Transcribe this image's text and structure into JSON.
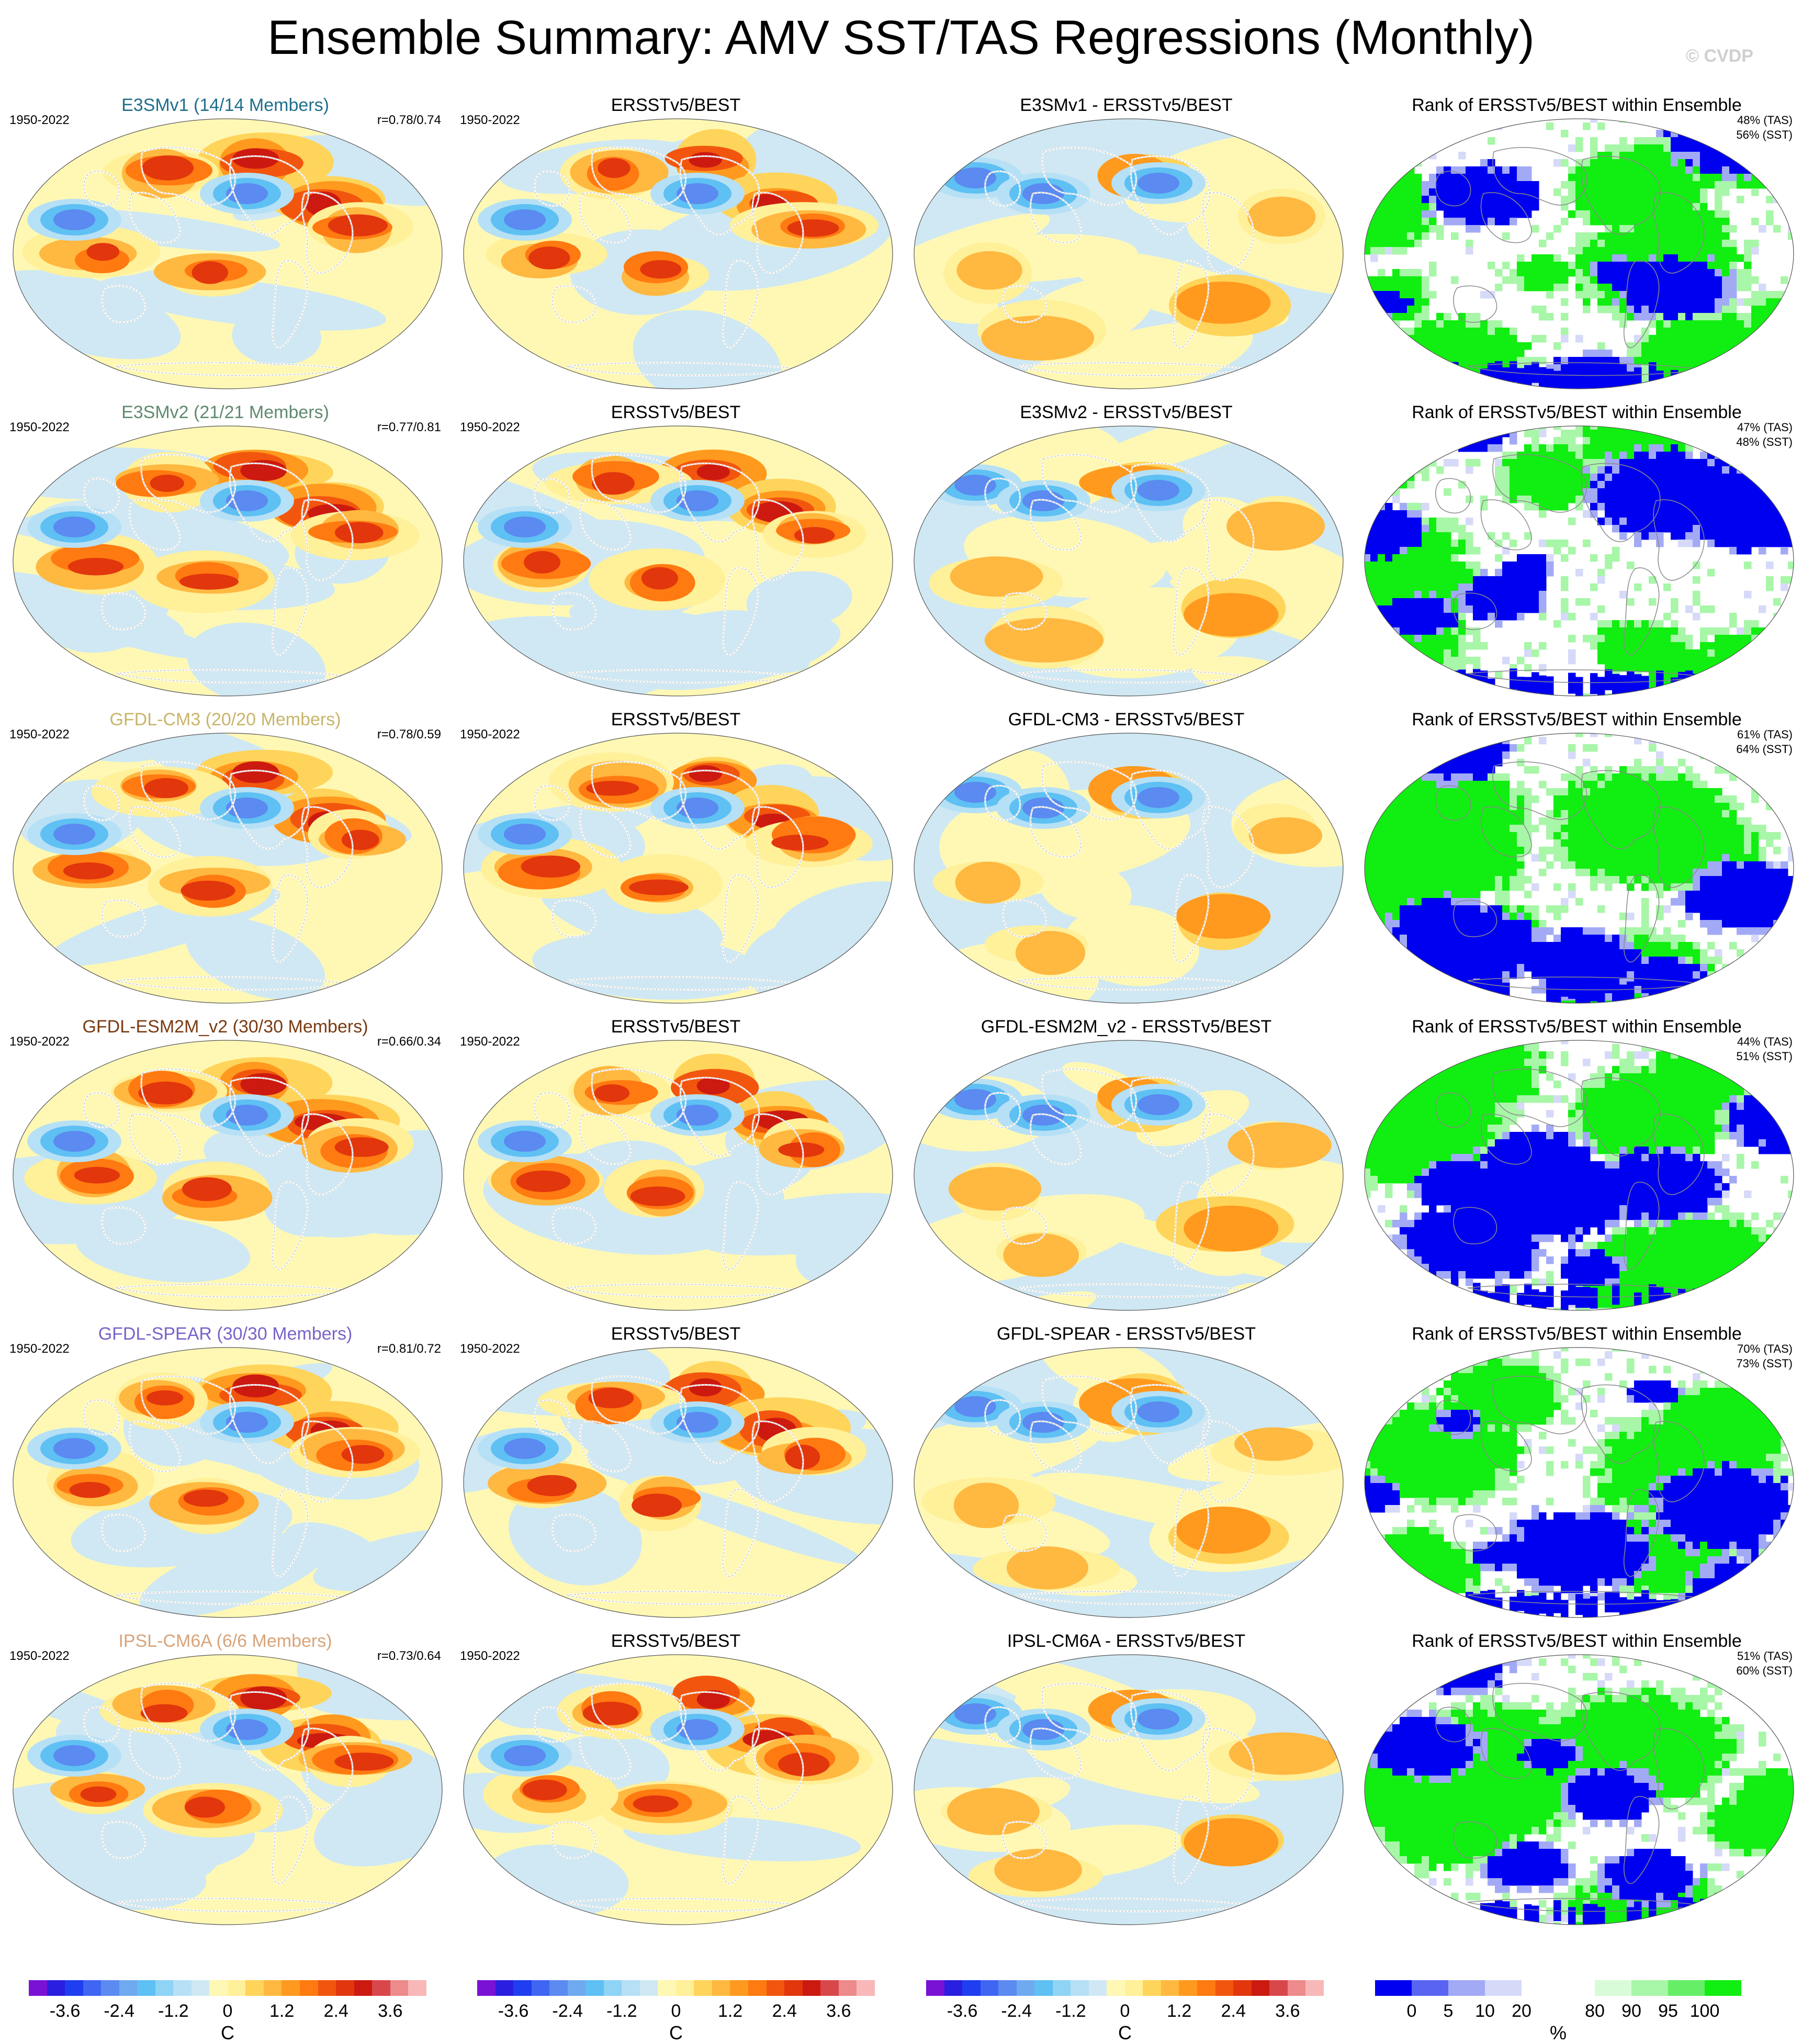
{
  "title": "Ensemble Summary: AMV SST/TAS Regressions (Monthly)",
  "watermark": "© CVDP",
  "colors": {
    "model_title_colors": [
      "#1f6f8b",
      "#5f8a6e",
      "#c8b56a",
      "#7a3b12",
      "#7b62c9",
      "#d8a47a"
    ]
  },
  "rows": [
    {
      "model": {
        "title": "E3SMv1 (14/14 Members)",
        "years": "1950-2022",
        "stat": "r=0.78/0.74"
      },
      "obs": {
        "title": "ERSSTv5/BEST",
        "years": "1950-2022"
      },
      "diff": {
        "title": "E3SMv1 - ERSSTv5/BEST"
      },
      "rank": {
        "title": "Rank of ERSSTv5/BEST within Ensemble",
        "tas": "48% (TAS)",
        "sst": "56% (SST)"
      }
    },
    {
      "model": {
        "title": "E3SMv2 (21/21 Members)",
        "years": "1950-2022",
        "stat": "r=0.77/0.81"
      },
      "obs": {
        "title": "ERSSTv5/BEST",
        "years": "1950-2022"
      },
      "diff": {
        "title": "E3SMv2 - ERSSTv5/BEST"
      },
      "rank": {
        "title": "Rank of ERSSTv5/BEST within Ensemble",
        "tas": "47% (TAS)",
        "sst": "48% (SST)"
      }
    },
    {
      "model": {
        "title": "GFDL-CM3 (20/20 Members)",
        "years": "1950-2022",
        "stat": "r=0.78/0.59"
      },
      "obs": {
        "title": "ERSSTv5/BEST",
        "years": "1950-2022"
      },
      "diff": {
        "title": "GFDL-CM3 - ERSSTv5/BEST"
      },
      "rank": {
        "title": "Rank of ERSSTv5/BEST within Ensemble",
        "tas": "61% (TAS)",
        "sst": "64% (SST)"
      }
    },
    {
      "model": {
        "title": "GFDL-ESM2M_v2 (30/30 Members)",
        "years": "1950-2022",
        "stat": "r=0.66/0.34"
      },
      "obs": {
        "title": "ERSSTv5/BEST",
        "years": "1950-2022"
      },
      "diff": {
        "title": "GFDL-ESM2M_v2 - ERSSTv5/BEST"
      },
      "rank": {
        "title": "Rank of ERSSTv5/BEST within Ensemble",
        "tas": "44% (TAS)",
        "sst": "51% (SST)"
      }
    },
    {
      "model": {
        "title": "GFDL-SPEAR (30/30 Members)",
        "years": "1950-2022",
        "stat": "r=0.81/0.72"
      },
      "obs": {
        "title": "ERSSTv5/BEST",
        "years": "1950-2022"
      },
      "diff": {
        "title": "GFDL-SPEAR - ERSSTv5/BEST"
      },
      "rank": {
        "title": "Rank of ERSSTv5/BEST within Ensemble",
        "tas": "70% (TAS)",
        "sst": "73% (SST)"
      }
    },
    {
      "model": {
        "title": "IPSL-CM6A (6/6 Members)",
        "years": "1950-2022",
        "stat": "r=0.73/0.64"
      },
      "obs": {
        "title": "ERSSTv5/BEST",
        "years": "1950-2022"
      },
      "diff": {
        "title": "IPSL-CM6A - ERSSTv5/BEST"
      },
      "rank": {
        "title": "Rank of ERSSTv5/BEST within Ensemble",
        "tas": "51% (TAS)",
        "sst": "60% (SST)"
      }
    }
  ],
  "colorbars": [
    {
      "unit": "C",
      "ticks": [
        "-3.6",
        "-2.4",
        "-1.2",
        "0",
        "1.2",
        "2.4",
        "3.6"
      ],
      "colors": [
        "#7a12d6",
        "#2a1ee0",
        "#1f3ef0",
        "#3f66f2",
        "#5b8af0",
        "#6faaf0",
        "#5ec0f3",
        "#8fd3f5",
        "#b6e0f5",
        "#cfe8f3",
        "#fff8b5",
        "#fff09a",
        "#ffd45a",
        "#ffb840",
        "#ff9a1e",
        "#ff7a10",
        "#f2560e",
        "#e2360d",
        "#cc1a10",
        "#d8484a",
        "#ec8a8c",
        "#f8b8b8"
      ]
    },
    {
      "unit": "C",
      "ticks": [
        "-3.6",
        "-2.4",
        "-1.2",
        "0",
        "1.2",
        "2.4",
        "3.6"
      ],
      "colors": [
        "#7a12d6",
        "#2a1ee0",
        "#1f3ef0",
        "#3f66f2",
        "#5b8af0",
        "#6faaf0",
        "#5ec0f3",
        "#8fd3f5",
        "#b6e0f5",
        "#cfe8f3",
        "#fff8b5",
        "#fff09a",
        "#ffd45a",
        "#ffb840",
        "#ff9a1e",
        "#ff7a10",
        "#f2560e",
        "#e2360d",
        "#cc1a10",
        "#d8484a",
        "#ec8a8c",
        "#f8b8b8"
      ]
    },
    {
      "unit": "C",
      "ticks": [
        "-3.6",
        "-2.4",
        "-1.2",
        "0",
        "1.2",
        "2.4",
        "3.6"
      ],
      "colors": [
        "#7a12d6",
        "#2a1ee0",
        "#1f3ef0",
        "#3f66f2",
        "#5b8af0",
        "#6faaf0",
        "#5ec0f3",
        "#8fd3f5",
        "#b6e0f5",
        "#cfe8f3",
        "#fff8b5",
        "#fff09a",
        "#ffd45a",
        "#ffb840",
        "#ff9a1e",
        "#ff7a10",
        "#f2560e",
        "#e2360d",
        "#cc1a10",
        "#d8484a",
        "#ec8a8c",
        "#f8b8b8"
      ]
    },
    {
      "unit": "%",
      "ticks": [
        "0",
        "5",
        "10",
        "20",
        "80",
        "90",
        "95",
        "100"
      ],
      "colors": [
        "#0000f0",
        "#5a64f2",
        "#a2aaf6",
        "#d6daf8",
        "#ffffff",
        "#ffffff",
        "#d8fcd8",
        "#a8f6a8",
        "#66ee66",
        "#11ee11"
      ]
    }
  ]
}
